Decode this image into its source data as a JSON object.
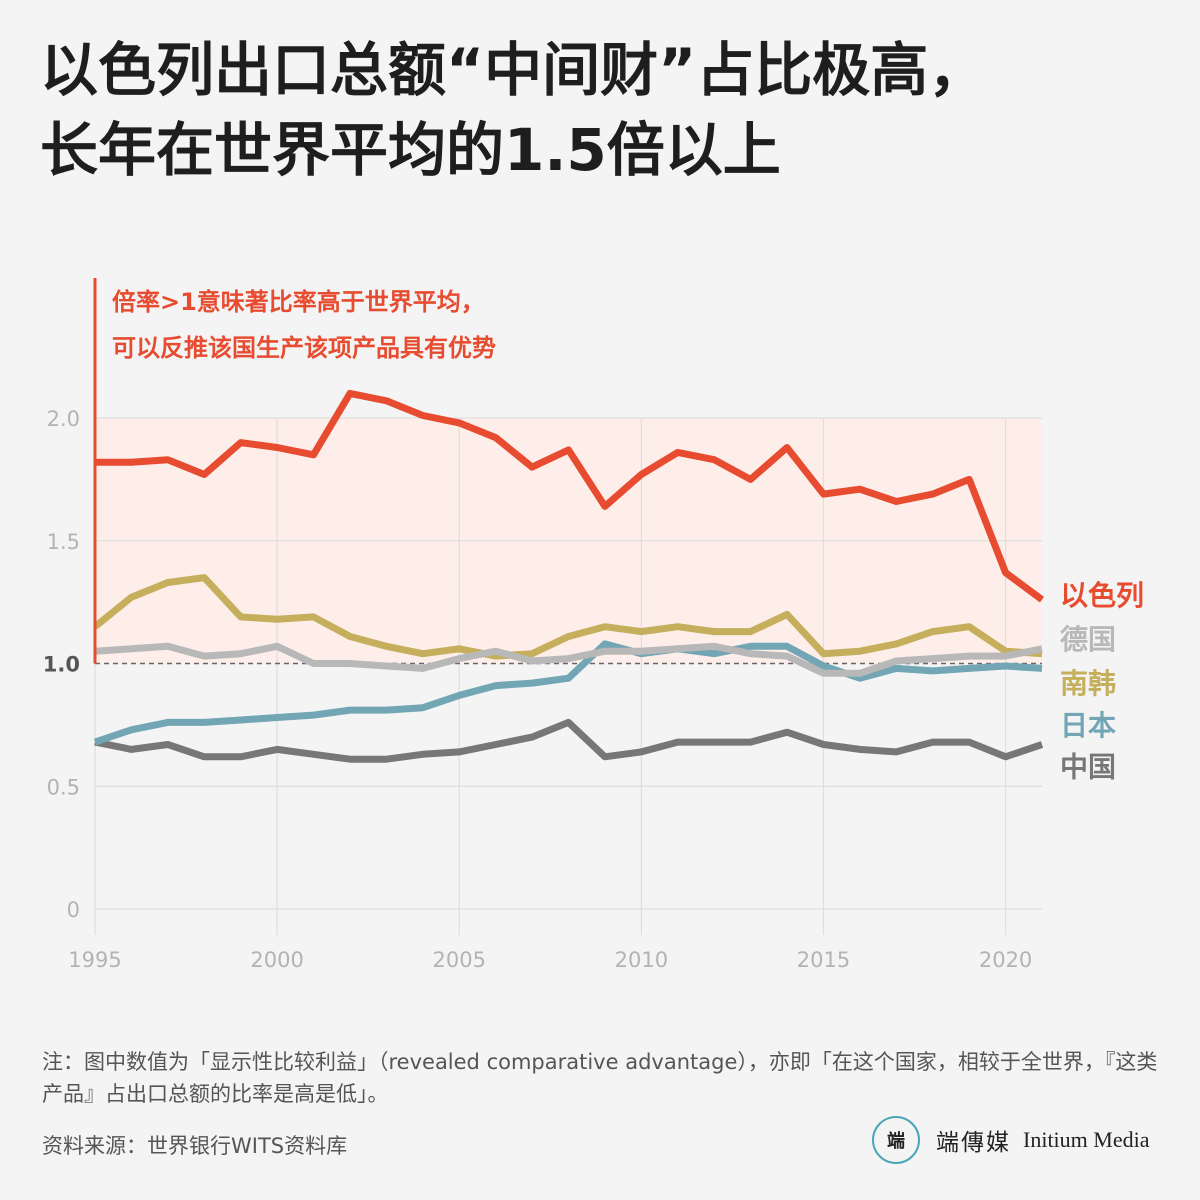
{
  "title": {
    "line1": "以色列出口总额“中间财”占比极高，",
    "line2": "长年在世界平均的1.5倍以上"
  },
  "annotation": {
    "line1": "倍率>1意味著比率高于世界平均，",
    "line2": "可以反推该国生产该项产品具有优势"
  },
  "footnote": "注：图中数值为「显示性比较利益」（revealed comparative advantage），亦即「在这个国家，相较于全世界，『这类产品』占出口总额的比率是高是低」。",
  "source": "资料来源：世界银行WITS资料库",
  "brand": {
    "logo_text": "端",
    "name_cn": "端傳媒",
    "name_en": "Initium Media"
  },
  "colors": {
    "israel": "#e84c30",
    "germany": "#b8b8b8",
    "korea": "#c5ae5c",
    "japan": "#72a6b4",
    "china": "#777777",
    "highlight_band": "#fdeeea",
    "grid": "#dedede",
    "axis_text": "#b3b3b3"
  },
  "chart_data": {
    "type": "line",
    "title": "以色列出口总额“中间财”占比极高，长年在世界平均的1.5倍以上",
    "xlabel": "",
    "ylabel": "",
    "xlim": [
      1995,
      2021
    ],
    "ylim": [
      0,
      2.2
    ],
    "x_ticks": [
      "1995",
      "2000",
      "2005",
      "2010",
      "2015",
      "2020"
    ],
    "y_ticks": [
      "0",
      "0.5",
      "1.0",
      "1.5",
      "2.0"
    ],
    "reference_line": 1.0,
    "highlight_band": [
      1.0,
      2.0
    ],
    "grid": true,
    "legend": "right-end-labels",
    "x": [
      1995,
      1996,
      1997,
      1998,
      1999,
      2000,
      2001,
      2002,
      2003,
      2004,
      2005,
      2006,
      2007,
      2008,
      2009,
      2010,
      2011,
      2012,
      2013,
      2014,
      2015,
      2016,
      2017,
      2018,
      2019,
      2020,
      2021
    ],
    "series": [
      {
        "name": "以色列",
        "color_key": "israel",
        "label_y": 1.28,
        "values": [
          1.82,
          1.82,
          1.83,
          1.77,
          1.9,
          1.88,
          1.85,
          2.1,
          2.07,
          2.01,
          1.98,
          1.92,
          1.8,
          1.87,
          1.64,
          1.77,
          1.86,
          1.83,
          1.75,
          1.88,
          1.69,
          1.71,
          1.66,
          1.69,
          1.75,
          1.37,
          1.26
        ]
      },
      {
        "name": "德国",
        "color_key": "germany",
        "label_y": 1.1,
        "values": [
          1.05,
          1.06,
          1.07,
          1.03,
          1.04,
          1.07,
          1.0,
          1.0,
          0.99,
          0.98,
          1.02,
          1.05,
          1.01,
          1.02,
          1.05,
          1.05,
          1.06,
          1.07,
          1.04,
          1.03,
          0.96,
          0.96,
          1.01,
          1.02,
          1.03,
          1.03,
          1.06
        ]
      },
      {
        "name": "南韩",
        "color_key": "korea",
        "label_y": 0.92,
        "values": [
          1.15,
          1.27,
          1.33,
          1.35,
          1.19,
          1.18,
          1.19,
          1.11,
          1.07,
          1.04,
          1.06,
          1.03,
          1.04,
          1.11,
          1.15,
          1.13,
          1.15,
          1.13,
          1.13,
          1.2,
          1.04,
          1.05,
          1.08,
          1.13,
          1.15,
          1.05,
          1.04
        ]
      },
      {
        "name": "日本",
        "color_key": "japan",
        "label_y": 0.75,
        "values": [
          0.68,
          0.73,
          0.76,
          0.76,
          0.77,
          0.78,
          0.79,
          0.81,
          0.81,
          0.82,
          0.87,
          0.91,
          0.92,
          0.94,
          1.08,
          1.04,
          1.06,
          1.04,
          1.07,
          1.07,
          0.99,
          0.94,
          0.98,
          0.97,
          0.98,
          0.99,
          0.98
        ]
      },
      {
        "name": "中国",
        "color_key": "china",
        "label_y": 0.58,
        "values": [
          0.68,
          0.65,
          0.67,
          0.62,
          0.62,
          0.65,
          0.63,
          0.61,
          0.61,
          0.63,
          0.64,
          0.67,
          0.7,
          0.76,
          0.62,
          0.64,
          0.68,
          0.68,
          0.68,
          0.72,
          0.67,
          0.65,
          0.64,
          0.68,
          0.68,
          0.62,
          0.67
        ]
      }
    ]
  }
}
